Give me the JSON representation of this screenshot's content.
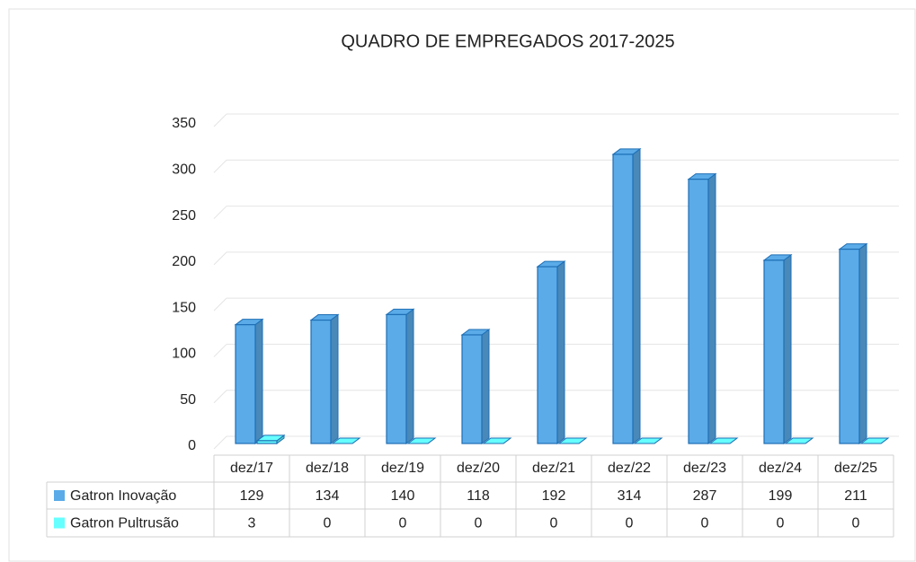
{
  "chart_data": {
    "type": "bar3d",
    "title": "QUADRO DE EMPREGADOS 2017-2025",
    "categories": [
      "dez/17",
      "dez/18",
      "dez/19",
      "dez/20",
      "dez/21",
      "dez/22",
      "dez/23",
      "dez/24",
      "dez/25"
    ],
    "series": [
      {
        "name": "Gatron Inovação",
        "color": "#5aabe8",
        "values": [
          129,
          134,
          140,
          118,
          192,
          314,
          287,
          199,
          211
        ]
      },
      {
        "name": "Gatron Pultrusão",
        "color": "#66ffff",
        "values": [
          3,
          0,
          0,
          0,
          0,
          0,
          0,
          0,
          0
        ]
      }
    ],
    "ylim": [
      0,
      350
    ],
    "yticks": [
      0,
      50,
      100,
      150,
      200,
      250,
      300,
      350
    ],
    "grid": true,
    "data_table": true
  }
}
